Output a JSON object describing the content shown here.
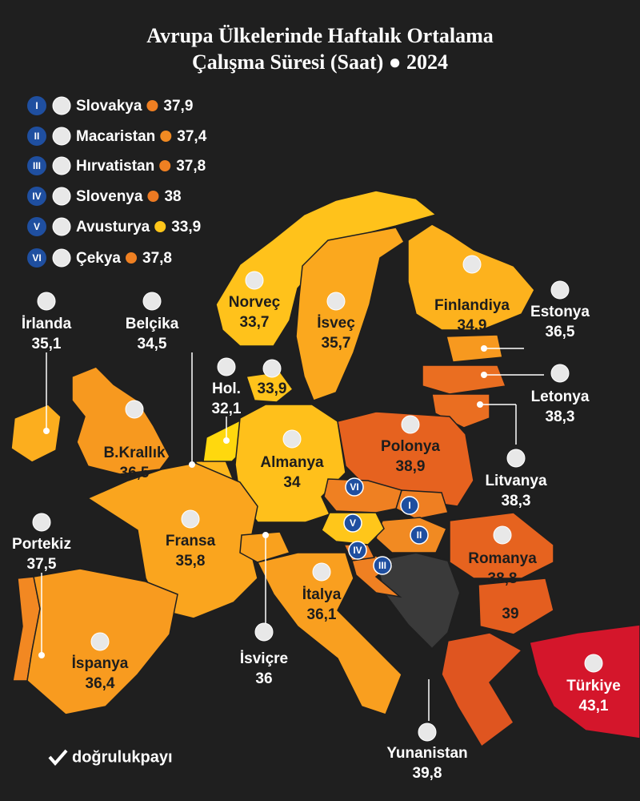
{
  "title_lines": [
    "Avrupa Ülkelerinde Haftalık Ortalama",
    "Çalışma Süresi (Saat) ● 2024"
  ],
  "legend": [
    {
      "numeral": "I",
      "name": "Slovakya",
      "value": 37.9,
      "value_label": "37,9",
      "color": "#ef7f22"
    },
    {
      "numeral": "II",
      "name": "Macaristan",
      "value": 37.4,
      "value_label": "37,4",
      "color": "#f18a22"
    },
    {
      "numeral": "III",
      "name": "Hırvatistan",
      "value": 37.8,
      "value_label": "37,8",
      "color": "#ef8022"
    },
    {
      "numeral": "IV",
      "name": "Slovenya",
      "value": 38,
      "color": "#ed7a22"
    },
    {
      "numeral": "V",
      "name": "Avusturya",
      "value": 33.9,
      "value_label": "33,9",
      "color": "#ffc61a"
    },
    {
      "numeral": "VI",
      "name": "Çekya",
      "value": 37.8,
      "value_label": "37,8",
      "color": "#ef8022"
    }
  ],
  "countries": [
    {
      "name": "Norveç",
      "value": 33.7,
      "value_label": "33,7",
      "color": "#ffc21b"
    },
    {
      "name": "İsveç",
      "value": 35.7,
      "value_label": "35,7",
      "color": "#fba81e"
    },
    {
      "name": "Finlandiya",
      "value": 34.9,
      "value_label": "34,9",
      "color": "#fdb21d"
    },
    {
      "name": "Estonya",
      "value": 36.5,
      "value_label": "36,5",
      "color": "#f7991f"
    },
    {
      "name": "Letonya",
      "value": 38.3,
      "value_label": "38,3",
      "color": "#ea6e21"
    },
    {
      "name": "Litvanya",
      "value": 38.3,
      "value_label": "38,3",
      "color": "#ea6e21"
    },
    {
      "name": "İrlanda",
      "value": 35.1,
      "value_label": "35,1",
      "color": "#fcae1e"
    },
    {
      "name": "Belçika",
      "value": 34.5,
      "value_label": "34,5",
      "color": "#feb71d"
    },
    {
      "name": "Hol.",
      "value": 32.1,
      "value_label": "32,1",
      "color": "#ffd80e"
    },
    {
      "name": null,
      "value": 33.9,
      "value_label": "33,9",
      "color": "#ffc31b"
    },
    {
      "name": "B.Krallık",
      "value": 36.5,
      "value_label": "36,5",
      "color": "#f7991f"
    },
    {
      "name": "Almanya",
      "value": 34,
      "color": "#ffc01b"
    },
    {
      "name": "Polonya",
      "value": 38.9,
      "value_label": "38,9",
      "color": "#e6621f"
    },
    {
      "name": "Fransa",
      "value": 35.8,
      "value_label": "35,8",
      "color": "#faa51e"
    },
    {
      "name": "Portekiz",
      "value": 37.5,
      "value_label": "37,5",
      "color": "#f28822"
    },
    {
      "name": "İspanya",
      "value": 36.4,
      "value_label": "36,4",
      "color": "#f89b1f"
    },
    {
      "name": "İsviçre",
      "value": 36,
      "color": "#f9a11e"
    },
    {
      "name": "İtalya",
      "value": 36.1,
      "value_label": "36,1",
      "color": "#f99f1f"
    },
    {
      "name": "Romanya",
      "value": 38.8,
      "value_label": "38,8",
      "color": "#e6631f"
    },
    {
      "name": null,
      "value": 39,
      "color": "#e45e1f"
    },
    {
      "name": "Türkiye",
      "value": 43.1,
      "value_label": "43,1",
      "color": "#d4162b"
    },
    {
      "name": "Yunanistan",
      "value": 39.8,
      "value_label": "39,8",
      "color": "#df5520"
    }
  ],
  "brand": "doğrulukpayı"
}
